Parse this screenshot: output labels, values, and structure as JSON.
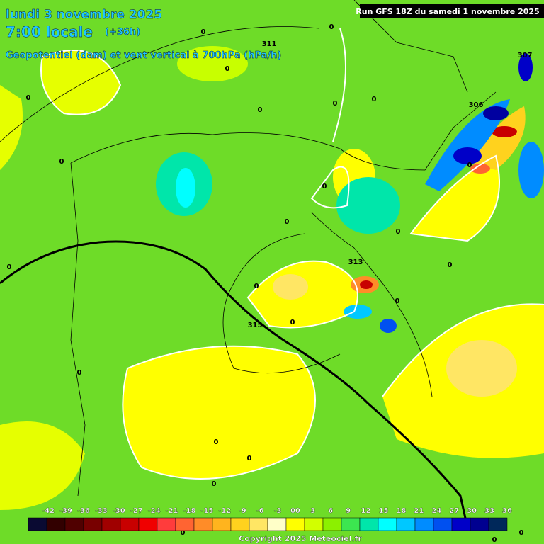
{
  "header": {
    "date": "lundi 3 novembre 2025",
    "time": "7:00 locale",
    "lead": "(+36h)",
    "parameter": "Geopotentiel (dam) et vent vertical à 700hPa (hPa/h)",
    "run": "Run GFS 18Z du samedi 1 novembre 2025"
  },
  "map_labels": [
    "0",
    "0",
    "311",
    "307",
    "0",
    "0",
    "0",
    "0",
    "0",
    "306",
    "0",
    "0",
    "0",
    "0",
    "0",
    "0",
    "313",
    "0",
    "0",
    "0",
    "0",
    "315",
    "0",
    "0",
    "0",
    "0",
    "0",
    "0",
    "0"
  ],
  "legend": {
    "labels": [
      "-42",
      "-39",
      "-36",
      "-33",
      "-30",
      "-27",
      "-24",
      "-21",
      "-18",
      "-15",
      "-12",
      "-9",
      "-6",
      "-3",
      "00",
      "3",
      "6",
      "9",
      "12",
      "15",
      "18",
      "21",
      "24",
      "27",
      "30",
      "33",
      "36"
    ],
    "colors": [
      "#0a0a32",
      "#320000",
      "#500000",
      "#780000",
      "#a00000",
      "#c80000",
      "#f00000",
      "#ff3c3c",
      "#ff6432",
      "#ff8c28",
      "#ffb41e",
      "#ffd21e",
      "#ffe664",
      "#ffffc8",
      "#ffff00",
      "#d2ff00",
      "#8cf000",
      "#3ce650",
      "#00e6aa",
      "#00ffff",
      "#00c8ff",
      "#008cff",
      "#0050f0",
      "#0000c8",
      "#000090",
      "#00285a"
    ]
  },
  "footer": {
    "copyright": "Copyright 2025 Meteociel.fr"
  }
}
